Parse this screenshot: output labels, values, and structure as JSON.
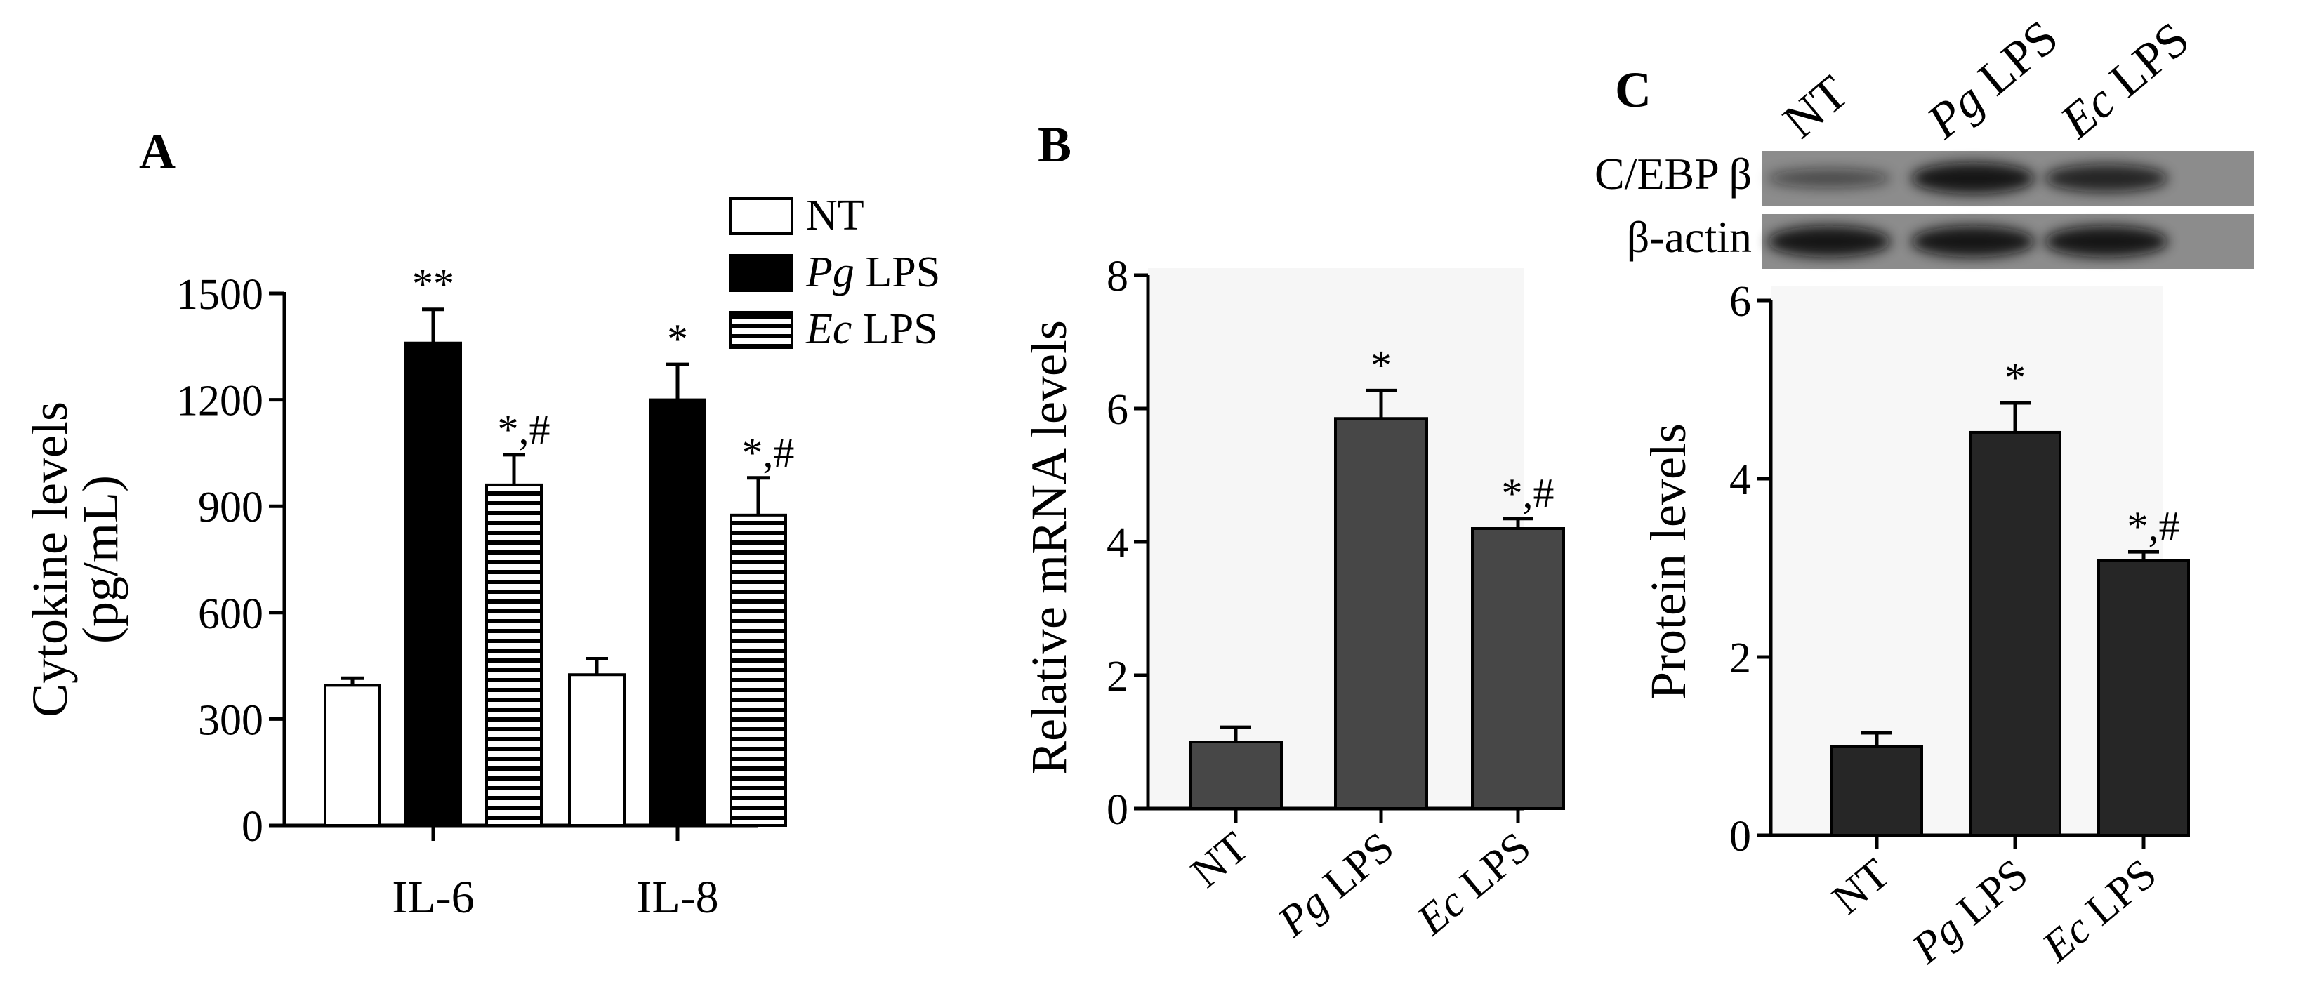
{
  "chart_data": [
    {
      "panel": "A",
      "type": "bar",
      "categories": [
        "IL-6",
        "IL-8"
      ],
      "series": [
        {
          "name": "NT",
          "values": [
            395,
            425
          ],
          "errors": [
            20,
            45
          ],
          "significance": [
            "",
            ""
          ],
          "color": "#ffffff",
          "pattern": "none"
        },
        {
          "name": "Pg LPS",
          "values": [
            1360,
            1200
          ],
          "errors": [
            95,
            100
          ],
          "significance": [
            "**",
            "*"
          ],
          "color": "#000000",
          "pattern": "none"
        },
        {
          "name": "Ec LPS",
          "values": [
            960,
            875
          ],
          "errors": [
            85,
            105
          ],
          "significance": [
            "*,#",
            "*,#"
          ],
          "color": "#ffffff",
          "pattern": "horizontal-stripes"
        }
      ],
      "legend": [
        {
          "italic": "",
          "text": "NT"
        },
        {
          "italic": "Pg",
          "text": " LPS"
        },
        {
          "italic": "Ec",
          "text": " LPS"
        }
      ],
      "ylabel_lines": [
        "Cytokine levels",
        "(pg/mL)"
      ],
      "yticks": [
        "0",
        "300",
        "600",
        "900",
        "1200",
        "1500"
      ],
      "ylim": [
        0,
        1500
      ],
      "legend_position": "top-right",
      "grid": false
    },
    {
      "panel": "B",
      "type": "bar",
      "categories": [
        "NT",
        "Pg LPS",
        "Ec LPS"
      ],
      "tick_parts": [
        [
          "",
          "NT"
        ],
        [
          "Pg",
          " LPS"
        ],
        [
          "Ec",
          " LPS"
        ]
      ],
      "values": [
        1.0,
        5.85,
        4.2
      ],
      "errors": [
        0.22,
        0.42,
        0.15
      ],
      "significance": [
        "",
        "*",
        "*,#"
      ],
      "ylabel": "Relative  mRNA  levels",
      "yticks": [
        "0",
        "2",
        "4",
        "6",
        "8"
      ],
      "ylim": [
        0,
        8
      ],
      "bar_color": "#474747",
      "grid": false
    },
    {
      "panel": "C",
      "type": "bar",
      "categories": [
        "NT",
        "Pg LPS",
        "Ec LPS"
      ],
      "tick_parts": [
        [
          "",
          "NT"
        ],
        [
          "Pg",
          " LPS"
        ],
        [
          "Ec",
          " LPS"
        ]
      ],
      "values": [
        1.0,
        4.52,
        3.08
      ],
      "errors": [
        0.15,
        0.33,
        0.1
      ],
      "significance": [
        "",
        "*",
        "*,#"
      ],
      "ylabel": "Protein  levels",
      "yticks": [
        "0",
        "2",
        "4",
        "6"
      ],
      "ylim": [
        0,
        6
      ],
      "bar_color": "#262626",
      "grid": false
    }
  ],
  "panel_labels": {
    "a": "A",
    "b": "B",
    "c": "C"
  },
  "blot": {
    "lane_labels": [
      [
        "",
        "NT"
      ],
      [
        "Pg",
        " LPS"
      ],
      [
        "Ec",
        " LPS"
      ]
    ],
    "rows": [
      {
        "name": "C/EBP β",
        "band_intensity": [
          0.35,
          0.9,
          0.75
        ]
      },
      {
        "name": "β-actin",
        "band_intensity": [
          0.9,
          0.9,
          0.9
        ]
      }
    ],
    "blot_background": "#8c8c8c",
    "band_color": "#0d0d0d"
  }
}
